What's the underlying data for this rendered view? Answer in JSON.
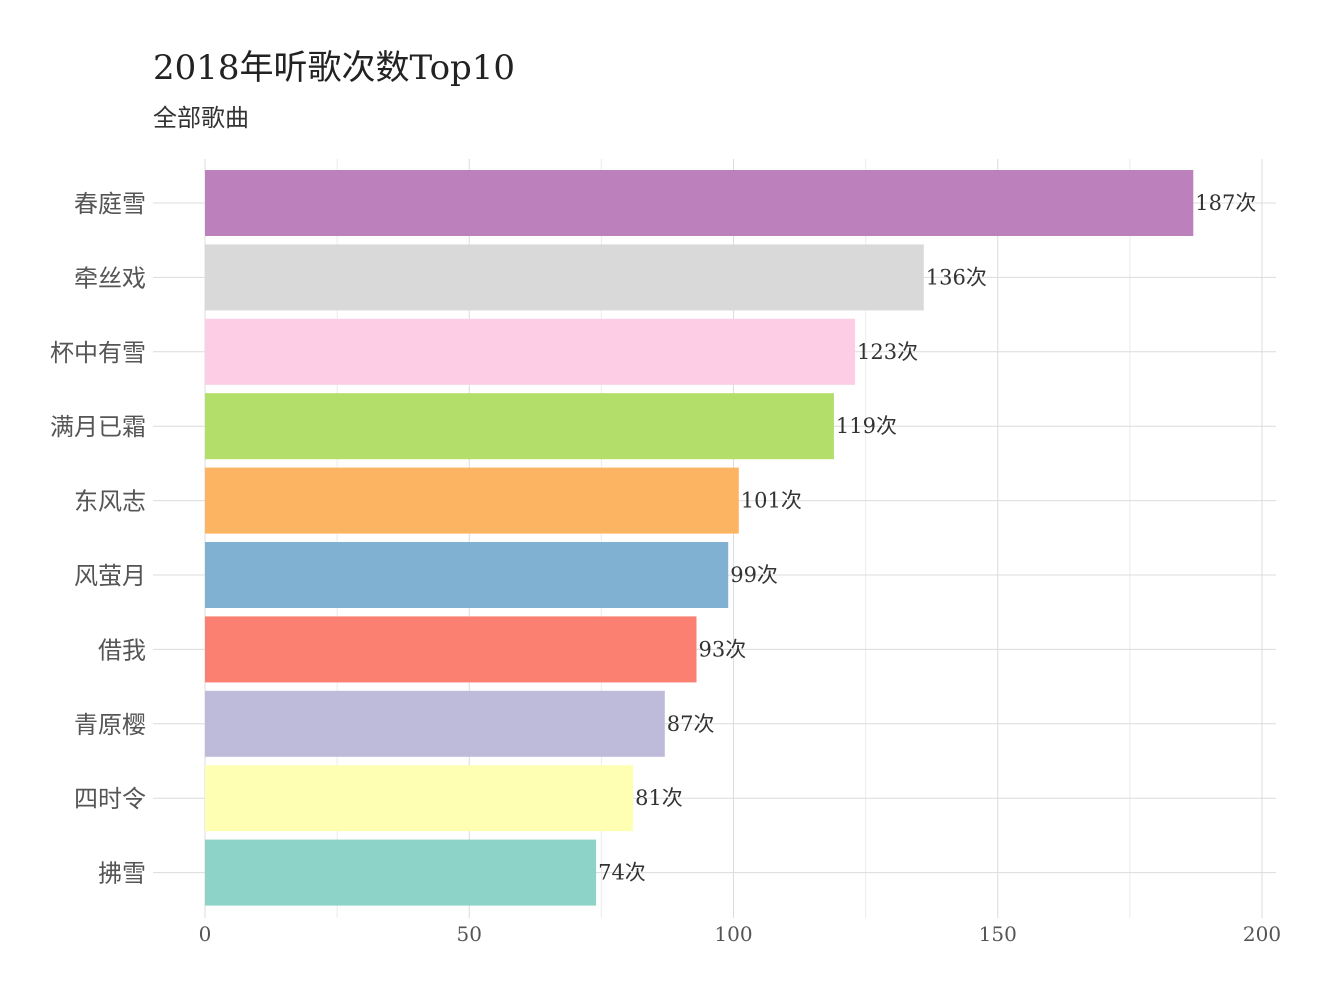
{
  "chart_data": {
    "type": "bar",
    "orientation": "horizontal",
    "title": "2018年听歌次数Top10",
    "subtitle": "全部歌曲",
    "xlabel": "",
    "ylabel": "",
    "xlim": [
      0,
      200
    ],
    "x_ticks": [
      "0",
      "50",
      "100",
      "150",
      "200"
    ],
    "grid": true,
    "legend": "none",
    "label_suffix": "次",
    "categories": [
      "春庭雪",
      "牵丝戏",
      "杯中有雪",
      "满月已霜",
      "东风志",
      "风萤月",
      "借我",
      "青原樱",
      "四时令",
      "拂雪"
    ],
    "values": [
      187,
      136,
      123,
      119,
      101,
      99,
      93,
      87,
      81,
      74
    ],
    "data_labels": [
      "187次",
      "136次",
      "123次",
      "119次",
      "101次",
      "99次",
      "93次",
      "87次",
      "81次",
      "74次"
    ],
    "colors": [
      "#BC80BD",
      "#D9D9D9",
      "#FCCDE5",
      "#B3DE69",
      "#FDB462",
      "#80B1D3",
      "#FB8072",
      "#BEBADA",
      "#FFFFB3",
      "#8DD3C7"
    ]
  }
}
